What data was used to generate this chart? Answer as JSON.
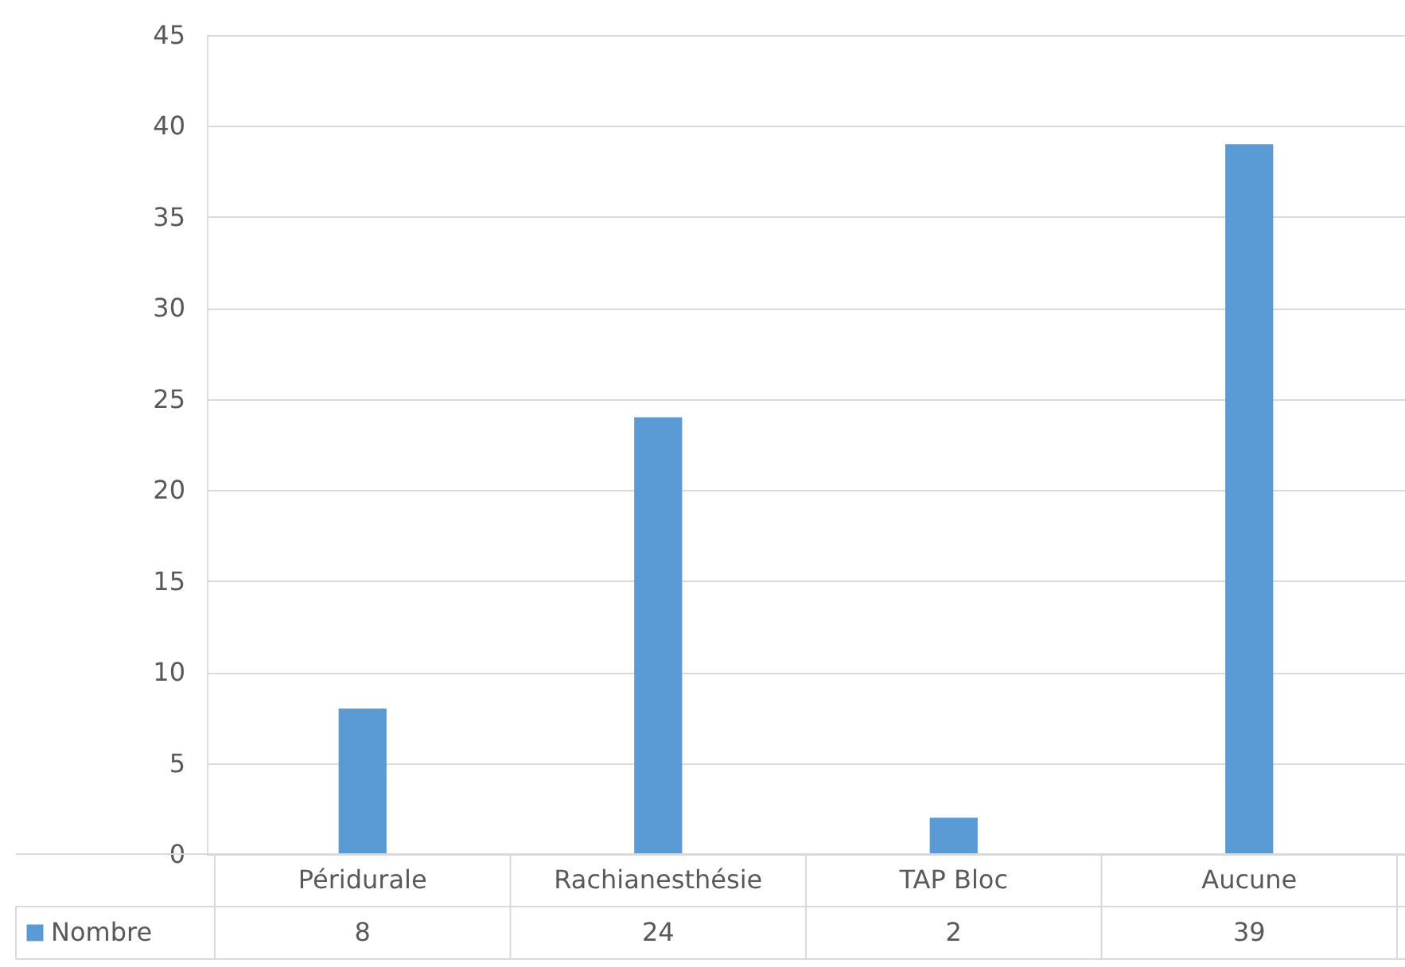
{
  "chart_data": {
    "type": "bar",
    "categories": [
      "Péridurale",
      "Rachianesthésie",
      "TAP Bloc",
      "Aucune"
    ],
    "series": [
      {
        "name": "Nombre",
        "color": "#5b9bd5",
        "values": [
          8,
          24,
          2,
          39
        ]
      }
    ],
    "ylim": [
      0,
      45
    ],
    "yticks": [
      0,
      5,
      10,
      15,
      20,
      25,
      30,
      35,
      40,
      45
    ],
    "grid": "y",
    "data_labels": true,
    "legend": "bottom"
  }
}
